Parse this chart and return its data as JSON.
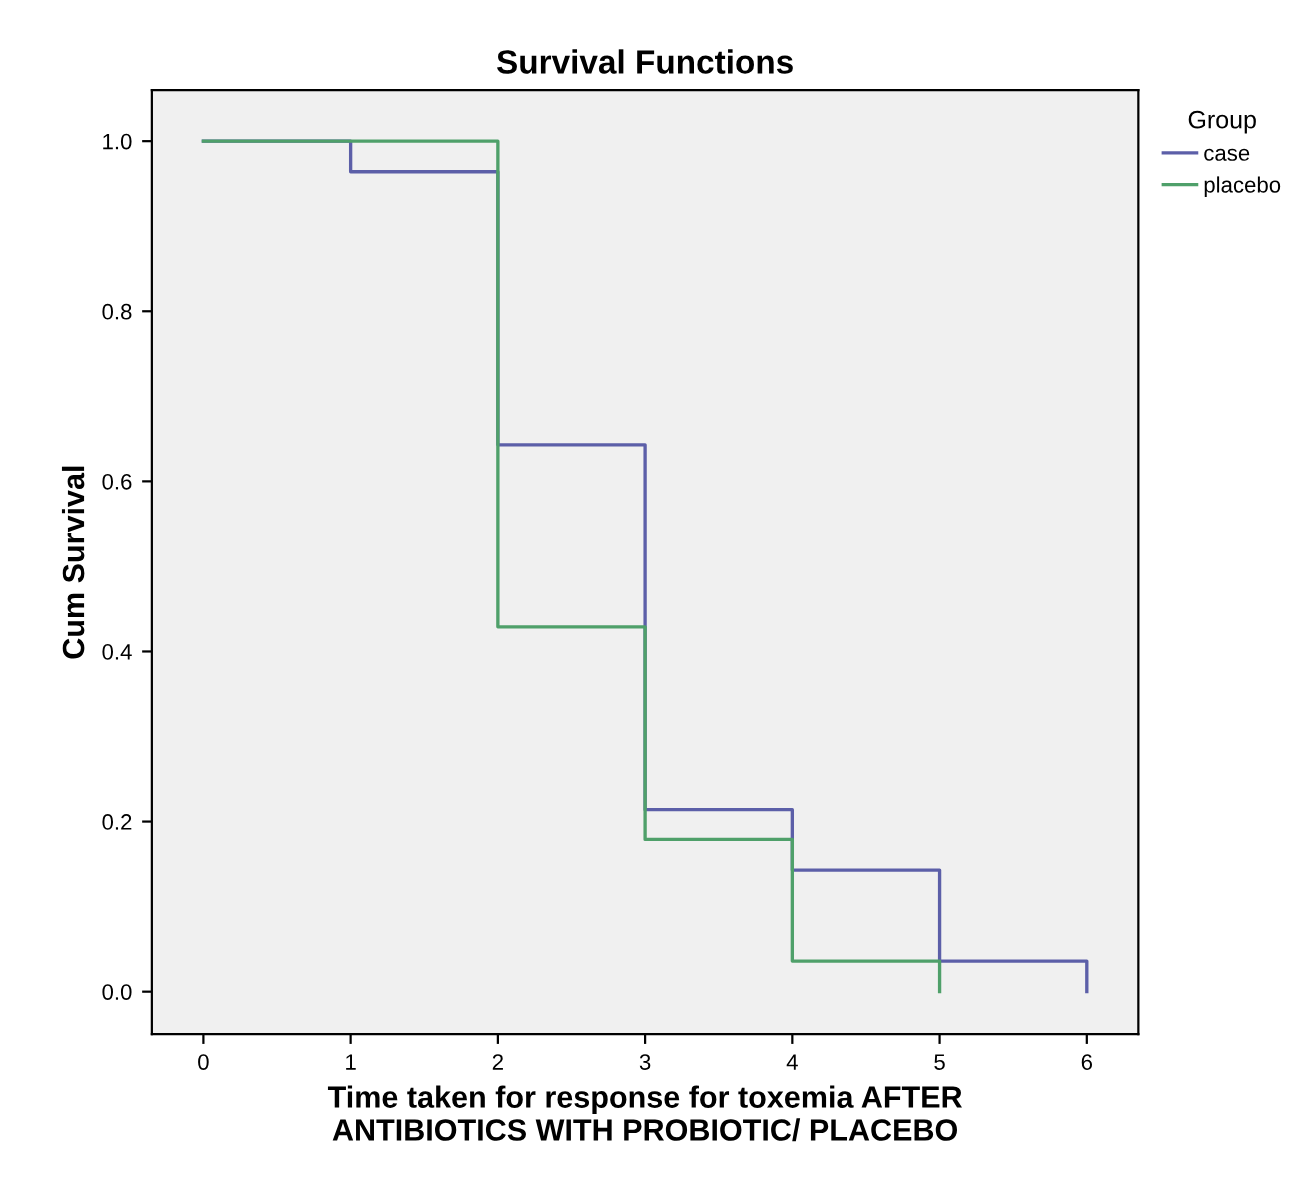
{
  "chart_data": {
    "type": "step",
    "title": "Survival Functions",
    "xlabel": "Time taken for response for toxemia AFTER\nANTIBIOTICS WITH PROBIOTIC/ PLACEBO",
    "ylabel": "Cum Survival",
    "legend_title": "Group",
    "legend": "top right",
    "grid": false,
    "marker": "none",
    "line_style": "solid",
    "series": [
      {
        "name": "case",
        "color": "#5c5fa8",
        "x": [
          0,
          1,
          2,
          3,
          4,
          5,
          6
        ],
        "values": [
          1.0,
          0.964,
          0.643,
          0.214,
          0.143,
          0.036,
          0.0
        ]
      },
      {
        "name": "placebo",
        "color": "#4fa06a",
        "x": [
          0,
          2,
          3,
          4,
          5
        ],
        "values": [
          1.0,
          0.429,
          0.179,
          0.036,
          0.0
        ]
      }
    ],
    "xlim": [
      -0.35,
      6.35
    ],
    "ylim": [
      -0.05,
      1.06
    ],
    "xticks": [
      0,
      1,
      2,
      3,
      4,
      5,
      6
    ],
    "yticks": [
      {
        "value": 0,
        "label": "0.0"
      },
      {
        "value": 0.2,
        "label": "0.2"
      },
      {
        "value": 0.4,
        "label": "0.4"
      },
      {
        "value": 0.6,
        "label": "0.6"
      },
      {
        "value": 0.8,
        "label": "0.8"
      },
      {
        "value": 1,
        "label": "1.0"
      }
    ]
  }
}
